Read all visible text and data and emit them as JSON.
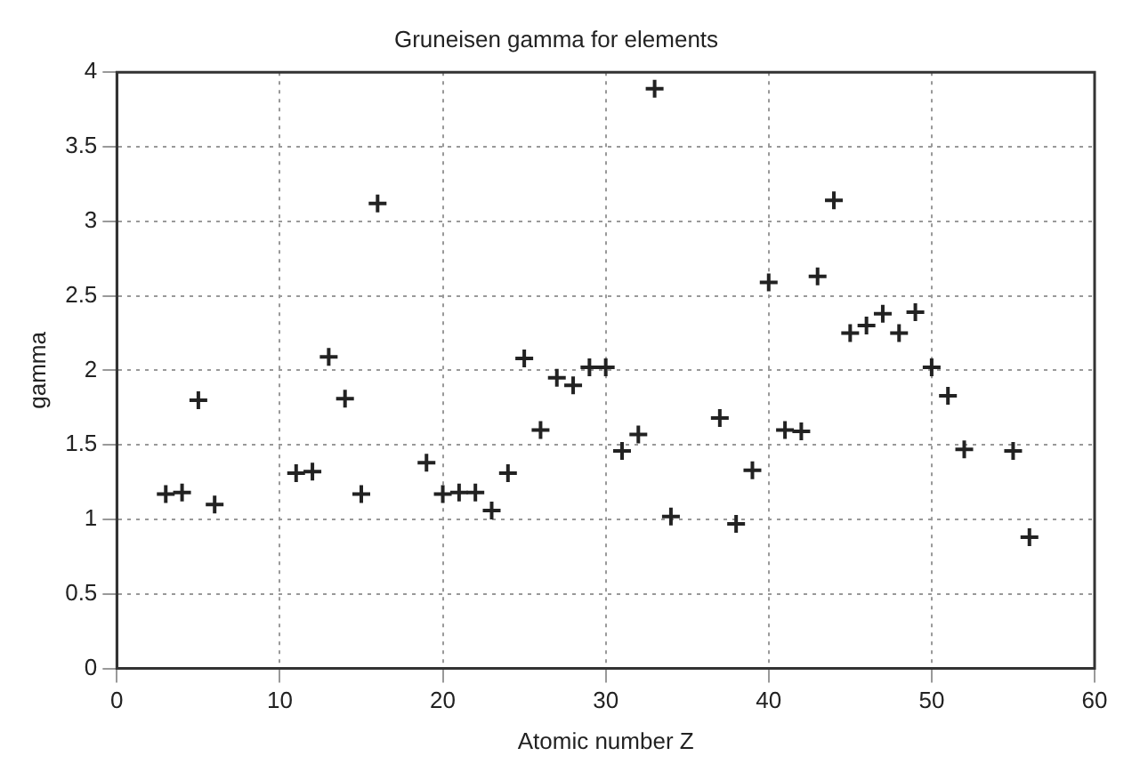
{
  "chart_data": {
    "type": "scatter",
    "title": "Gruneisen gamma for elements",
    "xlabel": "Atomic number Z",
    "ylabel": "gamma",
    "x": [
      3,
      4,
      5,
      6,
      11,
      12,
      13,
      14,
      15,
      16,
      19,
      20,
      21,
      22,
      23,
      24,
      25,
      26,
      27,
      28,
      29,
      30,
      31,
      32,
      33,
      34,
      37,
      38,
      39,
      40,
      41,
      42,
      43,
      44,
      45,
      46,
      47,
      48,
      49,
      50,
      51,
      52,
      55,
      56
    ],
    "series": [
      {
        "color": "#222222",
        "values": [
          1.17,
          1.18,
          1.8,
          1.1,
          1.31,
          1.32,
          2.09,
          1.81,
          1.17,
          3.12,
          1.38,
          1.17,
          1.18,
          1.18,
          1.06,
          1.31,
          2.08,
          1.6,
          1.95,
          1.9,
          2.02,
          2.02,
          1.46,
          1.57,
          3.89,
          1.02,
          1.68,
          0.97,
          1.33,
          2.59,
          1.6,
          1.59,
          2.63,
          3.14,
          2.25,
          2.3,
          2.38,
          2.25,
          2.39,
          2.02,
          1.83,
          1.47,
          1.46,
          0.88
        ]
      }
    ],
    "xlim": [
      0,
      60
    ],
    "xticks": [
      0,
      10,
      20,
      30,
      40,
      50,
      60
    ],
    "ylim": [
      0,
      4
    ],
    "yticks": [
      0,
      0.5,
      1,
      1.5,
      2,
      2.5,
      3,
      3.5,
      4
    ],
    "grid": true,
    "legend": false,
    "marker": "cross"
  }
}
